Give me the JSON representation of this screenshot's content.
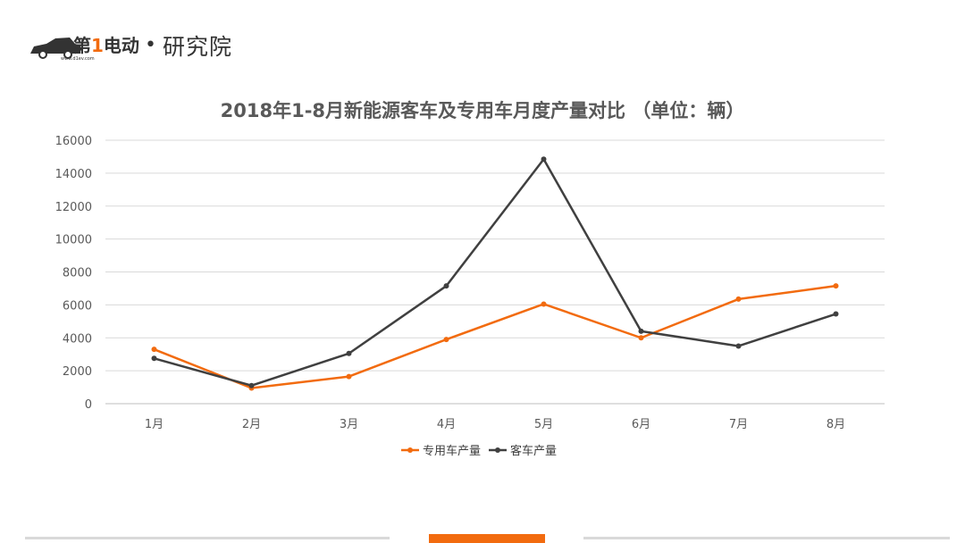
{
  "brand": {
    "logo_lettering": "第1电动",
    "logo_url_text": "www.d1ev.com",
    "separator": "•",
    "subtitle": "研究院"
  },
  "chart_data": {
    "type": "line",
    "title": "2018年1-8月新能源客车及专用车月度产量对比 （单位：辆）",
    "categories": [
      "1月",
      "2月",
      "3月",
      "4月",
      "5月",
      "6月",
      "7月",
      "8月"
    ],
    "series": [
      {
        "name": "专用车产量",
        "color": "#f26b0f",
        "values": [
          3300,
          950,
          1650,
          3900,
          6050,
          4000,
          6350,
          7150
        ]
      },
      {
        "name": "客车产量",
        "color": "#404040",
        "values": [
          2750,
          1100,
          3050,
          7150,
          14850,
          4400,
          3500,
          5450
        ]
      }
    ],
    "ylim": [
      0,
      16000
    ],
    "yticks": [
      0,
      2000,
      4000,
      6000,
      8000,
      10000,
      12000,
      14000,
      16000
    ],
    "grid": true,
    "legend_position": "bottom",
    "xlabel": "",
    "ylabel": ""
  }
}
